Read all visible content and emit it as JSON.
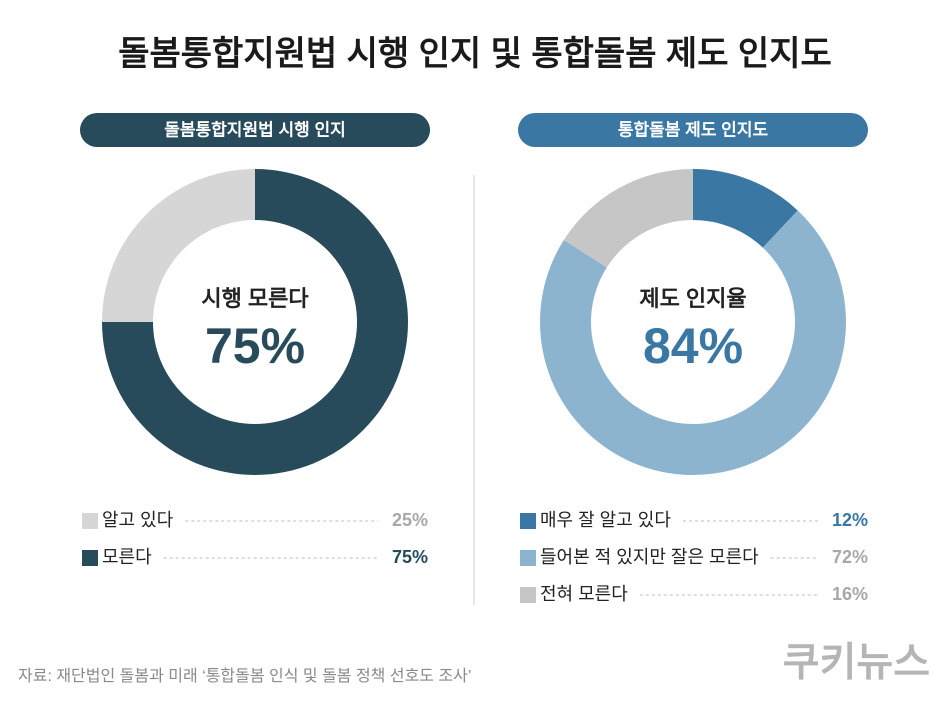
{
  "title": "돌봄통합지원법 시행 인지 및 통합돌봄 제도 인지도",
  "source": "자료: 재단법인 돌봄과 미래 ‘통합돌봄 인식 및 돌봄 정책 선호도 조사’",
  "logo": "쿠키뉴스",
  "chart_data": [
    {
      "type": "pie",
      "donut": true,
      "direction": "counterclockwise",
      "title": "돌봄통합지원법 시행 인지",
      "accent_color": "#274b5b",
      "center_text": "시행 모른다",
      "center_value": 75,
      "center_value_label": "75%",
      "categories": [
        "알고 있다",
        "모른다"
      ],
      "values": [
        25,
        75
      ],
      "value_labels": [
        "25%",
        "75%"
      ],
      "colors": [
        "#d6d6d6",
        "#274b5b"
      ],
      "value_label_colors": [
        "#a8a8a8",
        "#274b5b"
      ]
    },
    {
      "type": "pie",
      "donut": true,
      "direction": "clockwise",
      "title": "통합돌봄 제도 인지도",
      "accent_color": "#3a77a3",
      "center_text": "제도 인지율",
      "center_value": 84,
      "center_value_label": "84%",
      "categories": [
        "매우 잘 알고 있다",
        "들어본 적 있지만 잘은 모른다",
        "전혀 모른다"
      ],
      "values": [
        12,
        72,
        16
      ],
      "value_labels": [
        "12%",
        "72%",
        "16%"
      ],
      "colors": [
        "#3a77a3",
        "#8db4cf",
        "#c6c6c6"
      ],
      "value_label_colors": [
        "#3a77a3",
        "#a8a8a8",
        "#a8a8a8"
      ]
    }
  ]
}
